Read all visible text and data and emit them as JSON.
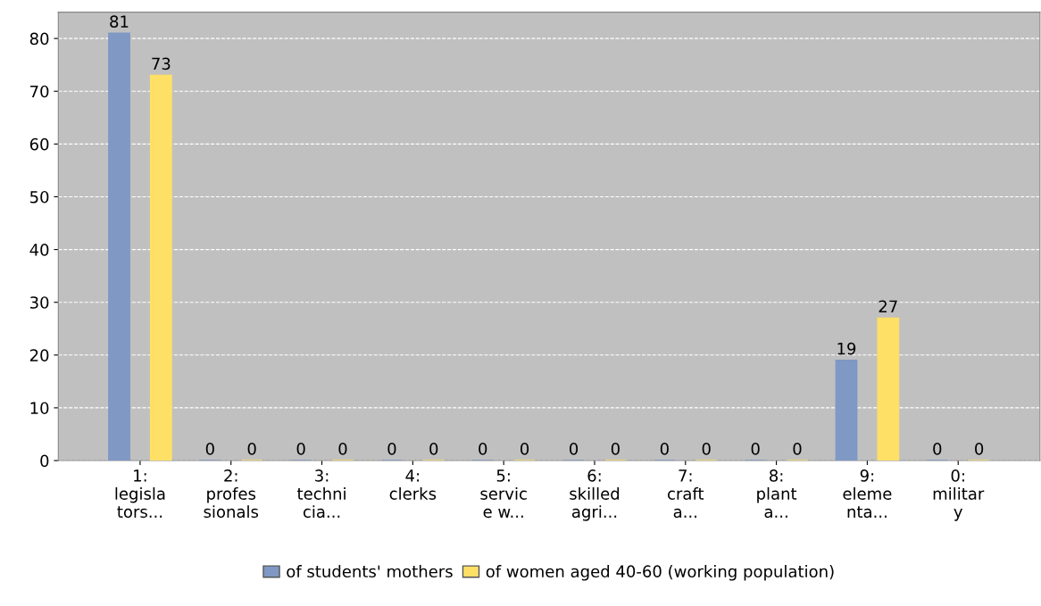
{
  "chart_data": {
    "type": "bar",
    "categories": [
      "1:\nlegisla\ntors...",
      "2:\nprofes\nsionals",
      "3:\ntechni\ncia...",
      "4:\nclerks",
      "5:\nservic\ne w...",
      "6:\nskilled\nagri...",
      "7:\ncraft\na...",
      "8:\nplant\na...",
      "9:\neleme\nnta...",
      "0:\nmilitar\ny"
    ],
    "series": [
      {
        "name": "of students' mothers",
        "color": "#7f98c4",
        "values": [
          81,
          0,
          0,
          0,
          0,
          0,
          0,
          0,
          19,
          0
        ]
      },
      {
        "name": "of women aged 40-60 (working population)",
        "color": "#ffe066",
        "values": [
          73,
          0,
          0,
          0,
          0,
          0,
          0,
          0,
          27,
          0
        ]
      }
    ],
    "ylim": [
      0,
      85
    ],
    "yticks": [
      0,
      10,
      20,
      30,
      40,
      50,
      60,
      70,
      80
    ],
    "grid": "y",
    "line_style": "dashed",
    "legend": "bottom",
    "data_labels": true
  }
}
